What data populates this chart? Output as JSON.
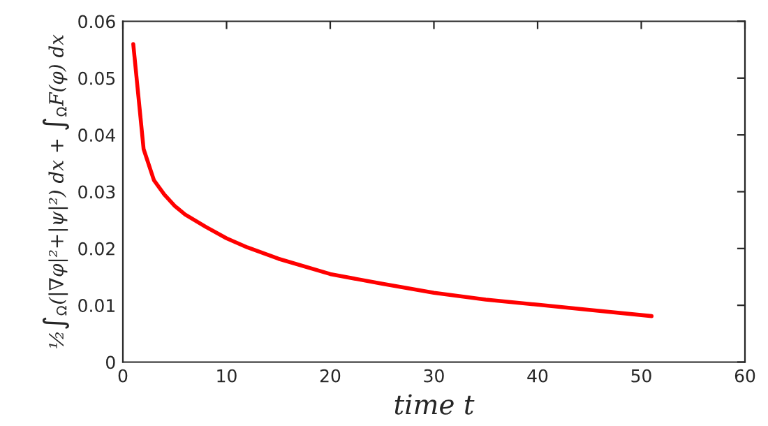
{
  "chart_data": {
    "type": "line",
    "xlabel": "time t",
    "ylabel": "½∫$_{Ω}$(|∇φ|²+|ψ|²) dx + ∫$_{Ω}$F(φ) dx",
    "x": [
      1,
      2,
      3,
      4,
      5,
      6,
      8,
      10,
      12,
      15,
      20,
      25,
      30,
      35,
      40,
      45,
      51
    ],
    "series": [
      {
        "color": "#ff0000",
        "values": [
          0.056,
          0.0375,
          0.032,
          0.0295,
          0.0275,
          0.026,
          0.0238,
          0.0218,
          0.0202,
          0.0182,
          0.0155,
          0.0138,
          0.0122,
          0.011,
          0.0101,
          0.0092,
          0.0081
        ]
      }
    ],
    "xlim": [
      0,
      60
    ],
    "ylim": [
      0,
      0.06
    ],
    "xticks": [
      0,
      10,
      20,
      30,
      40,
      50,
      60
    ],
    "yticks": [
      0,
      0.01,
      0.02,
      0.03,
      0.04,
      0.05,
      0.06
    ],
    "grid": false,
    "legend": false,
    "marker": "none",
    "line_style": "solid"
  }
}
